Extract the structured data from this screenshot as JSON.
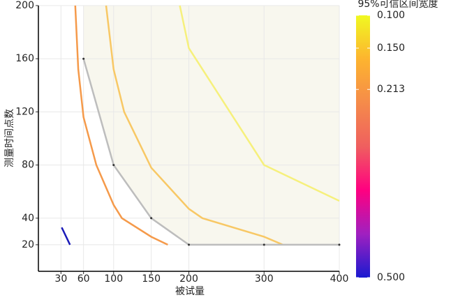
{
  "chart_data": {
    "type": "line",
    "x_label": "被试量",
    "y_label": "测量时间点数",
    "xlim": [
      0,
      400
    ],
    "ylim": [
      0,
      200
    ],
    "xticks": [
      30,
      60,
      100,
      150,
      200,
      300,
      400
    ],
    "yticks": [
      20,
      40,
      80,
      120,
      160,
      200
    ],
    "grid": true,
    "series": [
      {
        "color": "#f6f07c",
        "x": [
          188,
          200,
          300,
          400
        ],
        "y": [
          200,
          168,
          80,
          53
        ]
      },
      {
        "color": "#f8c865",
        "x": [
          90,
          100,
          114,
          150,
          200,
          218,
          300,
          325
        ],
        "y": [
          200,
          152,
          120,
          78,
          47,
          40,
          26,
          20
        ]
      },
      {
        "color": "#f59a4a",
        "x": [
          49,
          53,
          60,
          77,
          100,
          111,
          150,
          172
        ],
        "y": [
          200,
          152,
          116,
          80,
          50,
          40,
          26,
          20
        ]
      },
      {
        "color": "#1a1ab8",
        "x": [
          31,
          42
        ],
        "y": [
          33,
          20
        ]
      },
      {
        "color": "#bdbdbd",
        "x": [
          60,
          100,
          150,
          200,
          300,
          400
        ],
        "y": [
          160,
          80,
          40,
          20,
          20,
          20
        ]
      }
    ],
    "colorbar": {
      "title": "95%可信区间宽度",
      "lim": [
        0.1,
        0.5
      ],
      "colors": [
        "#f0f921",
        "#fdb42f",
        "#f58b4a",
        "#ef5f5f",
        "#ff0080",
        "#a020c0",
        "#1a1ad0"
      ],
      "ticks": [
        {
          "value": 0.1,
          "label": "0.100"
        },
        {
          "value": 0.15,
          "label": "0.150"
        },
        {
          "value": 0.213,
          "label": "0.213"
        },
        {
          "value": 0.5,
          "label": "0.500"
        }
      ]
    }
  }
}
